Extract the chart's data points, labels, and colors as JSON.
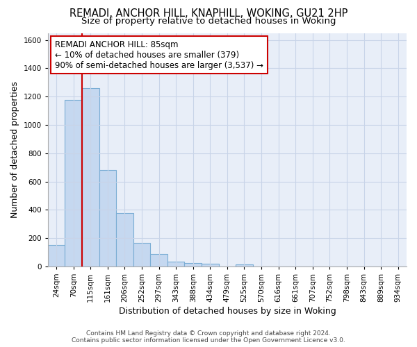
{
  "title1": "REMADI, ANCHOR HILL, KNAPHILL, WOKING, GU21 2HP",
  "title2": "Size of property relative to detached houses in Woking",
  "xlabel": "Distribution of detached houses by size in Woking",
  "ylabel": "Number of detached properties",
  "categories": [
    "24sqm",
    "70sqm",
    "115sqm",
    "161sqm",
    "206sqm",
    "252sqm",
    "297sqm",
    "343sqm",
    "388sqm",
    "434sqm",
    "479sqm",
    "525sqm",
    "570sqm",
    "616sqm",
    "661sqm",
    "707sqm",
    "752sqm",
    "798sqm",
    "843sqm",
    "889sqm",
    "934sqm"
  ],
  "values": [
    150,
    1175,
    1260,
    680,
    375,
    165,
    90,
    35,
    25,
    20,
    0,
    15,
    0,
    0,
    0,
    0,
    0,
    0,
    0,
    0,
    0
  ],
  "bar_color": "#c5d8f0",
  "bar_edge_color": "#7aadd4",
  "vline_color": "#cc0000",
  "vline_x": 1.5,
  "annotation_line1": "REMADI ANCHOR HILL: 85sqm",
  "annotation_line2": "← 10% of detached houses are smaller (379)",
  "annotation_line3": "90% of semi-detached houses are larger (3,537) →",
  "annotation_box_facecolor": "#ffffff",
  "annotation_box_edgecolor": "#cc0000",
  "ylim": [
    0,
    1650
  ],
  "yticks": [
    0,
    200,
    400,
    600,
    800,
    1000,
    1200,
    1400,
    1600
  ],
  "grid_color": "#c8d4e8",
  "background_color": "#e8eef8",
  "footer1": "Contains HM Land Registry data © Crown copyright and database right 2024.",
  "footer2": "Contains public sector information licensed under the Open Government Licence v3.0.",
  "title_fontsize": 10.5,
  "subtitle_fontsize": 9.5,
  "axis_label_fontsize": 9,
  "tick_fontsize": 7.5,
  "annotation_fontsize": 8.5,
  "footer_fontsize": 6.5
}
